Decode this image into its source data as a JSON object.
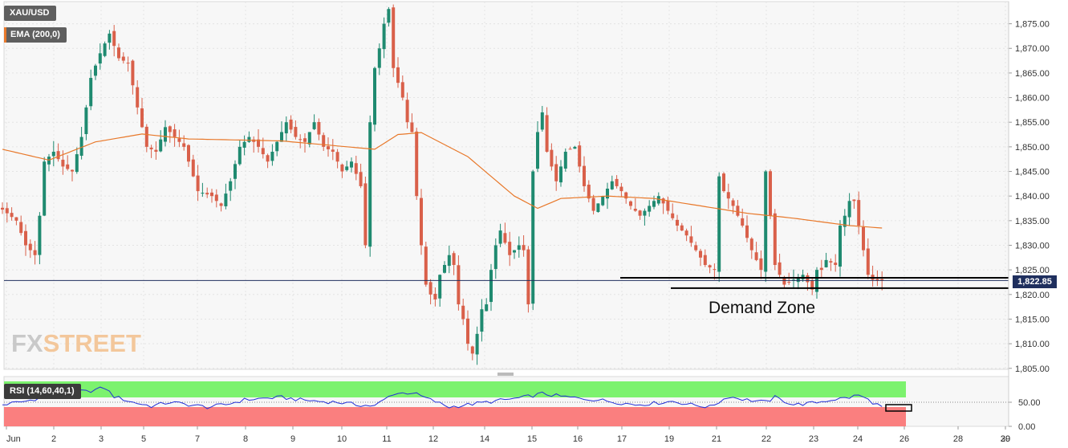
{
  "symbol_label": "XAU/USD",
  "ema_label": "EMA (200,0)",
  "rsi_label": "RSI (14,60,40,1)",
  "annotation": "Demand Zone",
  "last_price": "1,822.85",
  "logo": {
    "part1": "FX",
    "part2": "STREET"
  },
  "colors": {
    "bull": "#1f8a70",
    "bear": "#d9604a",
    "ema": "#e8782a",
    "rsi_line": "#2330d6",
    "rsi_upper_zone": "#7cf26e",
    "rsi_lower_zone": "#fa7f7f",
    "price_tag": "#1f2f5e",
    "ema_swatch": "#e8782a"
  },
  "chart_data": [
    {
      "type": "candlestick",
      "y_ticks": [
        "1,805.00",
        "1,810.00",
        "1,815.00",
        "1,820.00",
        "1,825.00",
        "1,830.00",
        "1,835.00",
        "1,840.00",
        "1,845.00",
        "1,850.00",
        "1,855.00",
        "1,860.00",
        "1,865.00",
        "1,870.00",
        "1,875.00"
      ],
      "ylim": [
        1804.8,
        1879.5
      ],
      "x_tick_labels": [
        "Jun",
        "2",
        "3",
        "5",
        "7",
        "8",
        "9",
        "10",
        "11",
        "12",
        "14",
        "15",
        "16",
        "17",
        "19",
        "21",
        "22",
        "23",
        "24",
        "26",
        "28",
        "29",
        "30"
      ],
      "last_price": 1822.85,
      "demand_zone": {
        "upper": 1823.4,
        "lower": 1821.3
      },
      "price_anchors": [
        [
          0,
          1838
        ],
        [
          4,
          1835
        ],
        [
          6,
          1830
        ],
        [
          8,
          1828
        ],
        [
          9,
          1836
        ],
        [
          10,
          1847
        ],
        [
          12,
          1849
        ],
        [
          14,
          1846
        ],
        [
          16,
          1845
        ],
        [
          18,
          1852
        ],
        [
          20,
          1864
        ],
        [
          22,
          1869
        ],
        [
          24,
          1873
        ],
        [
          26,
          1868
        ],
        [
          28,
          1867
        ],
        [
          30,
          1858
        ],
        [
          32,
          1850
        ],
        [
          34,
          1849
        ],
        [
          36,
          1854
        ],
        [
          40,
          1850
        ],
        [
          43,
          1841
        ],
        [
          46,
          1840
        ],
        [
          48,
          1838
        ],
        [
          50,
          1843
        ],
        [
          52,
          1850
        ],
        [
          54,
          1852
        ],
        [
          56,
          1850
        ],
        [
          58,
          1847
        ],
        [
          60,
          1851
        ],
        [
          62,
          1855
        ],
        [
          64,
          1852
        ],
        [
          66,
          1851
        ],
        [
          68,
          1855
        ],
        [
          70,
          1850
        ],
        [
          72,
          1849
        ],
        [
          74,
          1845
        ],
        [
          76,
          1847
        ],
        [
          78,
          1842
        ],
        [
          79,
          1830
        ],
        [
          80,
          1855
        ],
        [
          81,
          1866
        ],
        [
          82,
          1870
        ],
        [
          83,
          1875
        ],
        [
          84,
          1878
        ],
        [
          85,
          1866
        ],
        [
          86,
          1863
        ],
        [
          87,
          1860
        ],
        [
          88,
          1855
        ],
        [
          89,
          1853
        ],
        [
          90,
          1840
        ],
        [
          91,
          1830
        ],
        [
          92,
          1822
        ],
        [
          93,
          1820
        ],
        [
          94,
          1819
        ],
        [
          95,
          1824
        ],
        [
          97,
          1828
        ],
        [
          98,
          1826
        ],
        [
          99,
          1818
        ],
        [
          100,
          1815
        ],
        [
          101,
          1810
        ],
        [
          102,
          1808
        ],
        [
          103,
          1812
        ],
        [
          104,
          1817
        ],
        [
          105,
          1818
        ],
        [
          106,
          1825
        ],
        [
          107,
          1830
        ],
        [
          108,
          1833
        ],
        [
          110,
          1828
        ],
        [
          112,
          1830
        ],
        [
          113,
          1829
        ],
        [
          114,
          1818
        ],
        [
          115,
          1845
        ],
        [
          116,
          1853
        ],
        [
          117,
          1857
        ],
        [
          118,
          1849
        ],
        [
          119,
          1846
        ],
        [
          120,
          1843
        ],
        [
          122,
          1849
        ],
        [
          124,
          1850
        ],
        [
          126,
          1842
        ],
        [
          128,
          1837
        ],
        [
          130,
          1840
        ],
        [
          132,
          1843
        ],
        [
          134,
          1841
        ],
        [
          136,
          1838
        ],
        [
          138,
          1836
        ],
        [
          140,
          1838
        ],
        [
          142,
          1840
        ],
        [
          144,
          1837
        ],
        [
          146,
          1834
        ],
        [
          148,
          1832
        ],
        [
          150,
          1829
        ],
        [
          152,
          1826
        ],
        [
          154,
          1825
        ],
        [
          155,
          1844
        ],
        [
          156,
          1841
        ],
        [
          158,
          1838
        ],
        [
          160,
          1834
        ],
        [
          162,
          1829
        ],
        [
          164,
          1825
        ],
        [
          165,
          1845
        ],
        [
          166,
          1836
        ],
        [
          167,
          1826
        ],
        [
          169,
          1822
        ],
        [
          171,
          1823
        ],
        [
          173,
          1824
        ],
        [
          175,
          1821
        ],
        [
          176,
          1825
        ],
        [
          177,
          1825
        ],
        [
          178,
          1827
        ],
        [
          180,
          1826
        ],
        [
          181,
          1834
        ],
        [
          182,
          1836
        ],
        [
          183,
          1839
        ],
        [
          184,
          1839
        ],
        [
          185,
          1834
        ],
        [
          186,
          1829
        ],
        [
          187,
          1824
        ],
        [
          188,
          1823
        ],
        [
          189,
          1822.85
        ]
      ],
      "ema_anchors": [
        [
          0,
          1849.5
        ],
        [
          10,
          1847.3
        ],
        [
          20,
          1851
        ],
        [
          30,
          1852.6
        ],
        [
          40,
          1851.6
        ],
        [
          60,
          1851.2
        ],
        [
          80,
          1849.5
        ],
        [
          85,
          1852.5
        ],
        [
          90,
          1852.9
        ],
        [
          100,
          1848
        ],
        [
          110,
          1840
        ],
        [
          115,
          1837.5
        ],
        [
          120,
          1839.5
        ],
        [
          130,
          1840
        ],
        [
          140,
          1839.5
        ],
        [
          150,
          1838
        ],
        [
          160,
          1836.5
        ],
        [
          170,
          1835.5
        ],
        [
          178,
          1834.5
        ],
        [
          182,
          1834
        ],
        [
          189,
          1833.5
        ]
      ]
    },
    {
      "type": "line",
      "title": "RSI (14,60,40,1)",
      "y_ticks": [
        "0.00",
        "50.00"
      ],
      "ylim": [
        0,
        100
      ],
      "upper_band": 60,
      "lower_band": 40,
      "rsi_anchors": [
        [
          0,
          45
        ],
        [
          5,
          52
        ],
        [
          10,
          64
        ],
        [
          14,
          75
        ],
        [
          18,
          72
        ],
        [
          22,
          80
        ],
        [
          24,
          62
        ],
        [
          28,
          50
        ],
        [
          32,
          42
        ],
        [
          36,
          50
        ],
        [
          40,
          45
        ],
        [
          44,
          40
        ],
        [
          48,
          45
        ],
        [
          52,
          55
        ],
        [
          56,
          58
        ],
        [
          60,
          60
        ],
        [
          64,
          55
        ],
        [
          68,
          52
        ],
        [
          72,
          50
        ],
        [
          76,
          45
        ],
        [
          80,
          42
        ],
        [
          84,
          68
        ],
        [
          88,
          70
        ],
        [
          92,
          55
        ],
        [
          96,
          40
        ],
        [
          100,
          45
        ],
        [
          104,
          50
        ],
        [
          108,
          55
        ],
        [
          112,
          60
        ],
        [
          116,
          68
        ],
        [
          120,
          62
        ],
        [
          124,
          58
        ],
        [
          128,
          55
        ],
        [
          132,
          50
        ],
        [
          136,
          45
        ],
        [
          140,
          48
        ],
        [
          144,
          52
        ],
        [
          148,
          45
        ],
        [
          152,
          40
        ],
        [
          156,
          62
        ],
        [
          160,
          55
        ],
        [
          164,
          50
        ],
        [
          166,
          60
        ],
        [
          170,
          45
        ],
        [
          174,
          48
        ],
        [
          178,
          55
        ],
        [
          182,
          60
        ],
        [
          184,
          65
        ],
        [
          186,
          55
        ],
        [
          189,
          40
        ]
      ]
    }
  ]
}
